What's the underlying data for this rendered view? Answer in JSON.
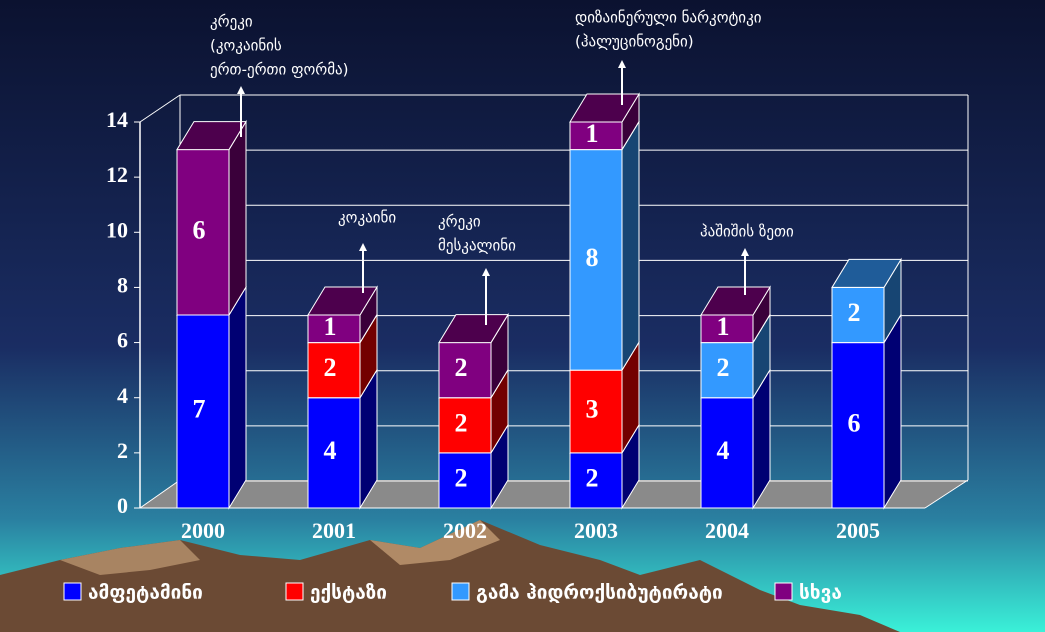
{
  "chart_data": {
    "type": "bar3d_stacked",
    "categories": [
      "2000",
      "2001",
      "2002",
      "2003",
      "2004",
      "2005"
    ],
    "series": [
      {
        "name": "ამფეტამინი",
        "color": "#0000ff",
        "values": [
          7,
          4,
          2,
          2,
          4,
          6
        ]
      },
      {
        "name": "ექსტაზი",
        "color": "#ff0000",
        "values": [
          null,
          2,
          2,
          3,
          null,
          null
        ]
      },
      {
        "name": "გამა ჰიდროქსიბუტირატი",
        "color": "#3399ff",
        "values": [
          null,
          null,
          null,
          8,
          2,
          2
        ]
      },
      {
        "name": "სხვა",
        "color": "#800080",
        "values": [
          6,
          1,
          2,
          1,
          1,
          null
        ]
      }
    ],
    "ylim": [
      0,
      14
    ],
    "yticks": [
      0,
      2,
      4,
      6,
      8,
      10,
      12,
      14
    ],
    "grid": true,
    "legend": "bottom",
    "annotations": [
      {
        "lines": [
          "კრეკი",
          "(კოკაინის",
          "ერთ-ერთი ფორმა)"
        ]
      },
      {
        "lines": [
          "კოკაინი"
        ]
      },
      {
        "lines": [
          "კრეკი",
          "მესკალინი"
        ]
      },
      {
        "lines": [
          "დიზაინერული ნარკოტიკი",
          "(ჰალუცინოგენი)"
        ]
      },
      {
        "lines": [
          "ჰაშიშის ზეთი"
        ]
      }
    ]
  }
}
